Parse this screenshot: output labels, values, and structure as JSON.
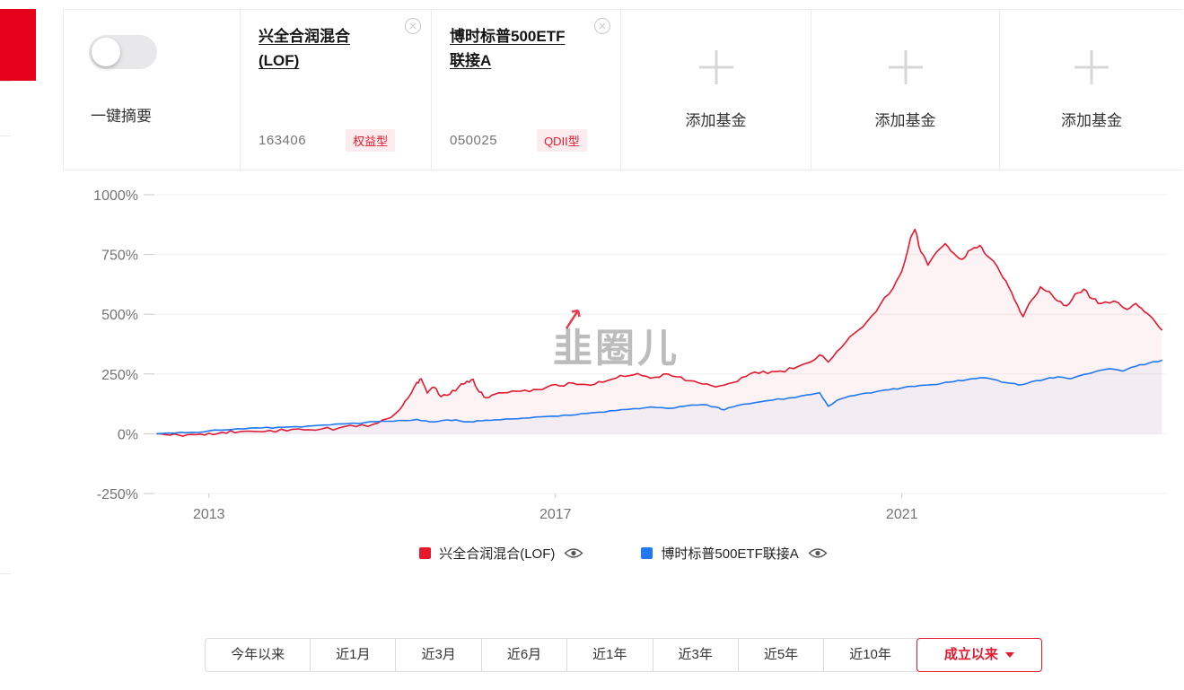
{
  "colors": {
    "brand_red": "#e60019",
    "series_red": "#e6182e",
    "series_blue": "#2079f2",
    "badge_bg": "#fdecee"
  },
  "header": {
    "summary": {
      "label": "一键摘要"
    },
    "funds": [
      {
        "name_line1": "兴全合润混合",
        "name_line2": "(LOF)",
        "code": "163406",
        "tag": "权益型"
      },
      {
        "name_line1": "博时标普500ETF",
        "name_line2": "联接A",
        "code": "050025",
        "tag": "QDII型"
      }
    ],
    "add_fund_label": "添加基金"
  },
  "chart_data": {
    "type": "line",
    "unit": "%",
    "grid": true,
    "legend_position": "bottom",
    "watermark": "韭圈儿",
    "ylim": [
      -250,
      1000
    ],
    "xlim": [
      2012.37,
      2024.06
    ],
    "y_ticks": [
      "1000%",
      "750%",
      "500%",
      "250%",
      "0%",
      "-250%"
    ],
    "y_tick_values": [
      1000,
      750,
      500,
      250,
      0,
      -250
    ],
    "x_ticks": [
      2013,
      2017,
      2021
    ],
    "series": [
      {
        "name": "兴全合润混合(LOF)",
        "color": "#e6182e",
        "points": [
          [
            2012.4,
            0
          ],
          [
            2012.55,
            -6
          ],
          [
            2012.7,
            -10
          ],
          [
            2012.85,
            -4
          ],
          [
            2013.0,
            2
          ],
          [
            2013.15,
            6
          ],
          [
            2013.3,
            4
          ],
          [
            2013.5,
            10
          ],
          [
            2013.7,
            14
          ],
          [
            2013.9,
            12
          ],
          [
            2014.1,
            16
          ],
          [
            2014.3,
            20
          ],
          [
            2014.5,
            24
          ],
          [
            2014.7,
            30
          ],
          [
            2014.9,
            40
          ],
          [
            2015.05,
            62
          ],
          [
            2015.2,
            100
          ],
          [
            2015.3,
            150
          ],
          [
            2015.4,
            215
          ],
          [
            2015.45,
            230
          ],
          [
            2015.52,
            170
          ],
          [
            2015.6,
            195
          ],
          [
            2015.68,
            155
          ],
          [
            2015.78,
            165
          ],
          [
            2015.88,
            195
          ],
          [
            2015.98,
            220
          ],
          [
            2016.05,
            228
          ],
          [
            2016.12,
            175
          ],
          [
            2016.2,
            150
          ],
          [
            2016.3,
            165
          ],
          [
            2016.45,
            172
          ],
          [
            2016.6,
            178
          ],
          [
            2016.75,
            185
          ],
          [
            2016.9,
            195
          ],
          [
            2017.05,
            200
          ],
          [
            2017.2,
            212
          ],
          [
            2017.35,
            206
          ],
          [
            2017.5,
            218
          ],
          [
            2017.65,
            228
          ],
          [
            2017.8,
            240
          ],
          [
            2017.95,
            252
          ],
          [
            2018.1,
            232
          ],
          [
            2018.25,
            250
          ],
          [
            2018.4,
            238
          ],
          [
            2018.55,
            222
          ],
          [
            2018.7,
            208
          ],
          [
            2018.85,
            196
          ],
          [
            2019.0,
            210
          ],
          [
            2019.15,
            235
          ],
          [
            2019.3,
            258
          ],
          [
            2019.45,
            252
          ],
          [
            2019.6,
            262
          ],
          [
            2019.75,
            272
          ],
          [
            2019.9,
            295
          ],
          [
            2020.05,
            330
          ],
          [
            2020.15,
            300
          ],
          [
            2020.3,
            360
          ],
          [
            2020.45,
            420
          ],
          [
            2020.6,
            470
          ],
          [
            2020.75,
            540
          ],
          [
            2020.9,
            610
          ],
          [
            2021.0,
            680
          ],
          [
            2021.1,
            820
          ],
          [
            2021.15,
            855
          ],
          [
            2021.22,
            760
          ],
          [
            2021.3,
            705
          ],
          [
            2021.4,
            760
          ],
          [
            2021.5,
            795
          ],
          [
            2021.6,
            755
          ],
          [
            2021.7,
            730
          ],
          [
            2021.8,
            770
          ],
          [
            2021.9,
            788
          ],
          [
            2021.98,
            745
          ],
          [
            2022.1,
            700
          ],
          [
            2022.2,
            640
          ],
          [
            2022.3,
            560
          ],
          [
            2022.4,
            490
          ],
          [
            2022.5,
            560
          ],
          [
            2022.6,
            615
          ],
          [
            2022.7,
            595
          ],
          [
            2022.8,
            555
          ],
          [
            2022.9,
            535
          ],
          [
            2023.0,
            585
          ],
          [
            2023.1,
            605
          ],
          [
            2023.2,
            565
          ],
          [
            2023.3,
            545
          ],
          [
            2023.45,
            555
          ],
          [
            2023.6,
            520
          ],
          [
            2023.7,
            545
          ],
          [
            2023.8,
            510
          ],
          [
            2023.9,
            480
          ],
          [
            2024.0,
            435
          ]
        ]
      },
      {
        "name": "博时标普500ETF联接A",
        "color": "#2079f2",
        "points": [
          [
            2012.4,
            0
          ],
          [
            2012.6,
            2
          ],
          [
            2012.8,
            6
          ],
          [
            2013.0,
            12
          ],
          [
            2013.2,
            16
          ],
          [
            2013.4,
            20
          ],
          [
            2013.6,
            24
          ],
          [
            2013.8,
            27
          ],
          [
            2014.0,
            30
          ],
          [
            2014.2,
            33
          ],
          [
            2014.4,
            37
          ],
          [
            2014.6,
            42
          ],
          [
            2014.8,
            47
          ],
          [
            2015.0,
            52
          ],
          [
            2015.2,
            56
          ],
          [
            2015.4,
            60
          ],
          [
            2015.55,
            50
          ],
          [
            2015.7,
            56
          ],
          [
            2015.85,
            58
          ],
          [
            2016.0,
            50
          ],
          [
            2016.15,
            54
          ],
          [
            2016.3,
            58
          ],
          [
            2016.5,
            62
          ],
          [
            2016.7,
            66
          ],
          [
            2016.9,
            72
          ],
          [
            2017.1,
            78
          ],
          [
            2017.3,
            84
          ],
          [
            2017.5,
            90
          ],
          [
            2017.7,
            97
          ],
          [
            2017.9,
            105
          ],
          [
            2018.1,
            112
          ],
          [
            2018.3,
            106
          ],
          [
            2018.5,
            116
          ],
          [
            2018.7,
            122
          ],
          [
            2018.85,
            112
          ],
          [
            2018.95,
            100
          ],
          [
            2019.1,
            118
          ],
          [
            2019.3,
            130
          ],
          [
            2019.5,
            140
          ],
          [
            2019.7,
            150
          ],
          [
            2019.9,
            162
          ],
          [
            2020.05,
            172
          ],
          [
            2020.15,
            115
          ],
          [
            2020.25,
            140
          ],
          [
            2020.4,
            158
          ],
          [
            2020.55,
            168
          ],
          [
            2020.7,
            176
          ],
          [
            2020.85,
            184
          ],
          [
            2021.0,
            192
          ],
          [
            2021.15,
            198
          ],
          [
            2021.3,
            204
          ],
          [
            2021.45,
            210
          ],
          [
            2021.6,
            218
          ],
          [
            2021.75,
            226
          ],
          [
            2021.9,
            234
          ],
          [
            2022.05,
            228
          ],
          [
            2022.2,
            214
          ],
          [
            2022.35,
            204
          ],
          [
            2022.5,
            218
          ],
          [
            2022.65,
            228
          ],
          [
            2022.8,
            238
          ],
          [
            2022.95,
            230
          ],
          [
            2023.1,
            248
          ],
          [
            2023.25,
            262
          ],
          [
            2023.4,
            272
          ],
          [
            2023.55,
            262
          ],
          [
            2023.7,
            282
          ],
          [
            2023.85,
            295
          ],
          [
            2024.0,
            307
          ]
        ]
      }
    ]
  },
  "tabs": {
    "items": [
      {
        "label": "今年以来"
      },
      {
        "label": "近1月"
      },
      {
        "label": "近3月"
      },
      {
        "label": "近6月"
      },
      {
        "label": "近1年"
      },
      {
        "label": "近3年"
      },
      {
        "label": "近5年"
      },
      {
        "label": "近10年"
      },
      {
        "label": "成立以来",
        "selected": true
      }
    ]
  }
}
